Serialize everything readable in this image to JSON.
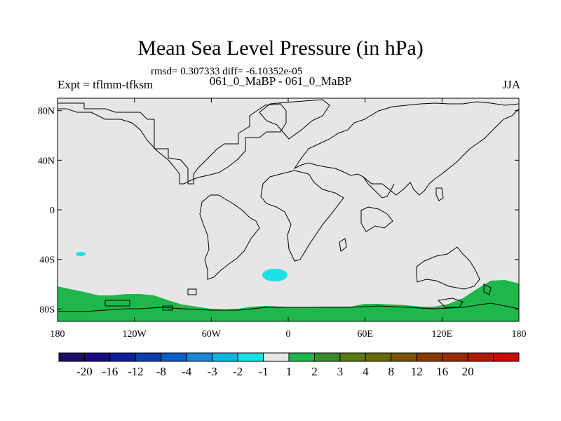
{
  "header": {
    "title": "Mean Sea Level Pressure (in hPa)",
    "stats": "rmsd= 0.307333 diff= -6.10352e-05",
    "experiment": "Expt = tflmm-tfksm",
    "runs": "061_0_MaBP - 061_0_MaBP",
    "season": "JJA"
  },
  "map": {
    "lat_ticks": [
      "80N",
      "40N",
      "0",
      "40S",
      "80S"
    ],
    "lon_ticks": [
      "180",
      "120W",
      "60W",
      "0",
      "60E",
      "120E",
      "180"
    ],
    "lat_values": [
      80,
      40,
      0,
      -40,
      -80
    ],
    "lon_values": [
      -180,
      -120,
      -60,
      0,
      60,
      120,
      180
    ],
    "lat_range": [
      -90,
      90
    ],
    "lon_range": [
      -180,
      180
    ],
    "colors": {
      "background": "#e6e6e6",
      "positive_band": "#1fb74a",
      "negative_patch": "#1de0e6",
      "coastline": "#000000"
    }
  },
  "colorbar": {
    "colors": [
      "#1f0a6b",
      "#160a86",
      "#0a1f9a",
      "#0a3db0",
      "#0a5ec8",
      "#1a86d6",
      "#10b4e0",
      "#1de0e6",
      "#e6e6e6",
      "#1fb74a",
      "#3a8a2a",
      "#5a7a10",
      "#6a6a05",
      "#7a5200",
      "#8a3a00",
      "#9a2a00",
      "#b01a00",
      "#c80a00"
    ],
    "labels": [
      "-20",
      "-16",
      "-12",
      "-8",
      "-4",
      "-3",
      "-2",
      "-1",
      "1",
      "2",
      "3",
      "4",
      "8",
      "12",
      "16",
      "20"
    ]
  }
}
